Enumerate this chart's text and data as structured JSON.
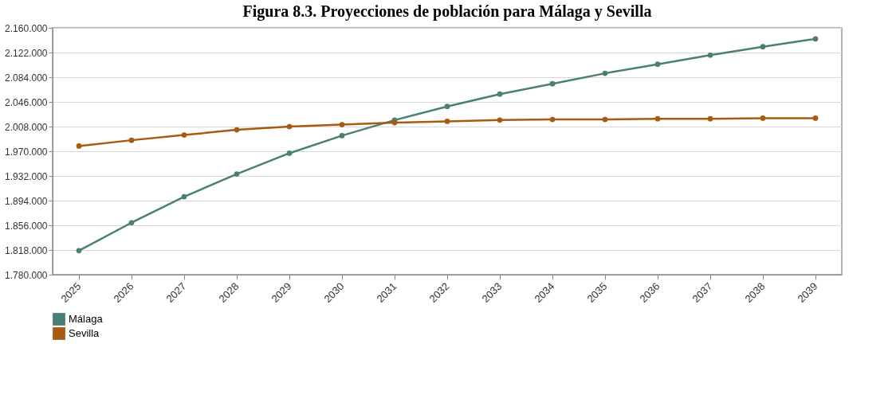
{
  "chart_data": {
    "type": "line",
    "title": "Figura 8.3. Proyecciones de población para Málaga y Sevilla",
    "categories": [
      "2025",
      "2026",
      "2027",
      "2028",
      "2029",
      "2030",
      "2031",
      "2032",
      "2033",
      "2034",
      "2035",
      "2036",
      "2037",
      "2038",
      "2039"
    ],
    "series": [
      {
        "name": "Málaga",
        "color": "#4a7f78",
        "values": [
          1817000,
          1860000,
          1900000,
          1935000,
          1967000,
          1994000,
          2018000,
          2039000,
          2058000,
          2074000,
          2090000,
          2104000,
          2118000,
          2131000,
          2143000
        ]
      },
      {
        "name": "Sevilla",
        "color": "#a85a10",
        "values": [
          1978000,
          1987000,
          1995000,
          2003000,
          2008000,
          2011000,
          2014000,
          2016000,
          2018000,
          2019000,
          2019000,
          2020000,
          2020000,
          2021000,
          2021000
        ]
      }
    ],
    "ylim": [
      1780000,
      2160000
    ],
    "yticks": [
      {
        "value": 1780000,
        "label": "1.780.000"
      },
      {
        "value": 1818000,
        "label": "1.818.000"
      },
      {
        "value": 1856000,
        "label": "1.856.000"
      },
      {
        "value": 1894000,
        "label": "1.894.000"
      },
      {
        "value": 1932000,
        "label": "1.932.000"
      },
      {
        "value": 1970000,
        "label": "1.970.000"
      },
      {
        "value": 2008000,
        "label": "2.008.000"
      },
      {
        "value": 2046000,
        "label": "2.046.000"
      },
      {
        "value": 2084000,
        "label": "2.084.000"
      },
      {
        "value": 2122000,
        "label": "2.122.000"
      },
      {
        "value": 2160000,
        "label": "2.160.000"
      }
    ],
    "grid": "y",
    "legend": "bottom left",
    "marker": "circle",
    "line_style": "solid"
  }
}
